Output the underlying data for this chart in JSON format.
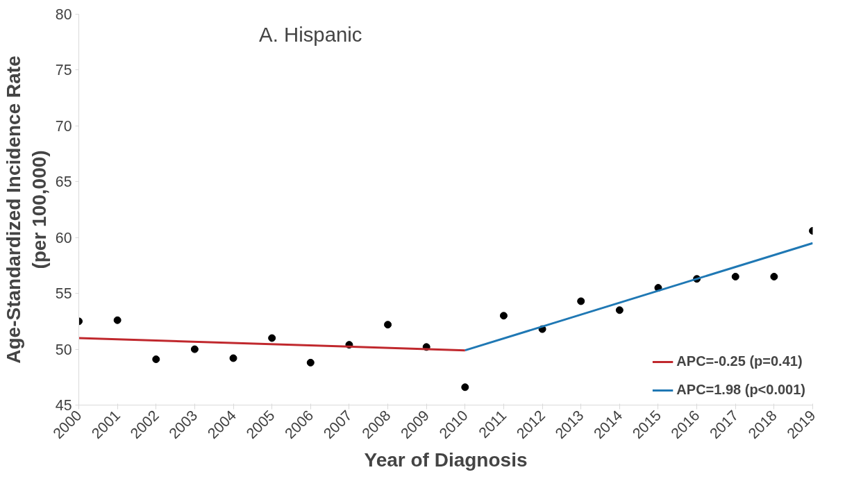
{
  "chart_data": {
    "type": "scatter",
    "title": "A. Hispanic",
    "xlabel": "Year of Diagnosis",
    "ylabel": "Age-Standardized Incidence Rate\n(per 100,000)",
    "x": [
      2000,
      2001,
      2002,
      2003,
      2004,
      2005,
      2006,
      2007,
      2008,
      2009,
      2010,
      2011,
      2012,
      2013,
      2014,
      2015,
      2016,
      2017,
      2018,
      2019
    ],
    "series": [
      {
        "color": "#000000",
        "marker": "circle",
        "values": [
          52.5,
          52.6,
          49.1,
          50.0,
          49.2,
          51.0,
          48.8,
          50.4,
          52.2,
          50.2,
          46.6,
          53.0,
          51.8,
          54.3,
          53.5,
          55.5,
          56.3,
          56.5,
          56.5,
          60.6
        ]
      },
      {
        "type": "line",
        "name": "APC=-0.25 (p=0.41)",
        "color": "#c0282d",
        "x": [
          2000,
          2010
        ],
        "values": [
          51.0,
          49.9
        ]
      },
      {
        "type": "line",
        "name": "APC=1.98 (p<0.001)",
        "color": "#1f78b4",
        "x": [
          2010,
          2019
        ],
        "values": [
          49.9,
          59.5
        ]
      }
    ],
    "xlim": [
      2000,
      2019
    ],
    "xticks": [
      2000,
      2001,
      2002,
      2003,
      2004,
      2005,
      2006,
      2007,
      2008,
      2009,
      2010,
      2011,
      2012,
      2013,
      2014,
      2015,
      2016,
      2017,
      2018,
      2019
    ],
    "ylim": [
      45,
      80
    ],
    "yticks": [
      45,
      50,
      55,
      60,
      65,
      70,
      75,
      80
    ],
    "grid": false,
    "legend": "bottom right",
    "line_style": "solid"
  }
}
